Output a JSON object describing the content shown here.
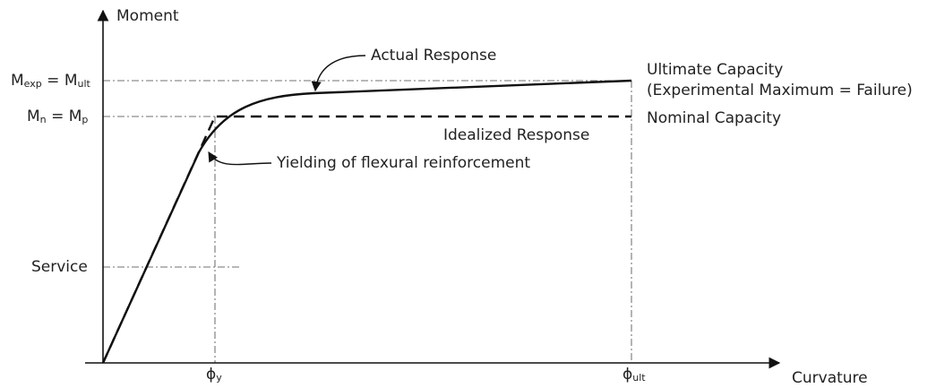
{
  "axes": {
    "y_label": "Moment",
    "x_label": "Curvature"
  },
  "levels": {
    "ultimate": {
      "left": {
        "symbol": "M",
        "subscript": "exp"
      },
      "equals": "=",
      "right": {
        "symbol": "M",
        "subscript": "ult"
      }
    },
    "nominal": {
      "left": {
        "symbol": "M",
        "subscript": "n"
      },
      "equals": "=",
      "right": {
        "symbol": "M",
        "subscript": "p"
      }
    },
    "service": "Service"
  },
  "curvatures": {
    "yield": {
      "symbol": "ϕ",
      "subscript": "y"
    },
    "ultimate": {
      "symbol": "ϕ",
      "subscript": "ult"
    }
  },
  "annotations": {
    "actual_response": "Actual Response",
    "ultimate_capacity": "Ultimate Capacity",
    "ultimate_capacity_note": "(Experimental Maximum = Failure)",
    "nominal_capacity": "Nominal Capacity",
    "idealized_response": "Idealized Response",
    "yielding": "Yielding of flexural reinforcement"
  }
}
